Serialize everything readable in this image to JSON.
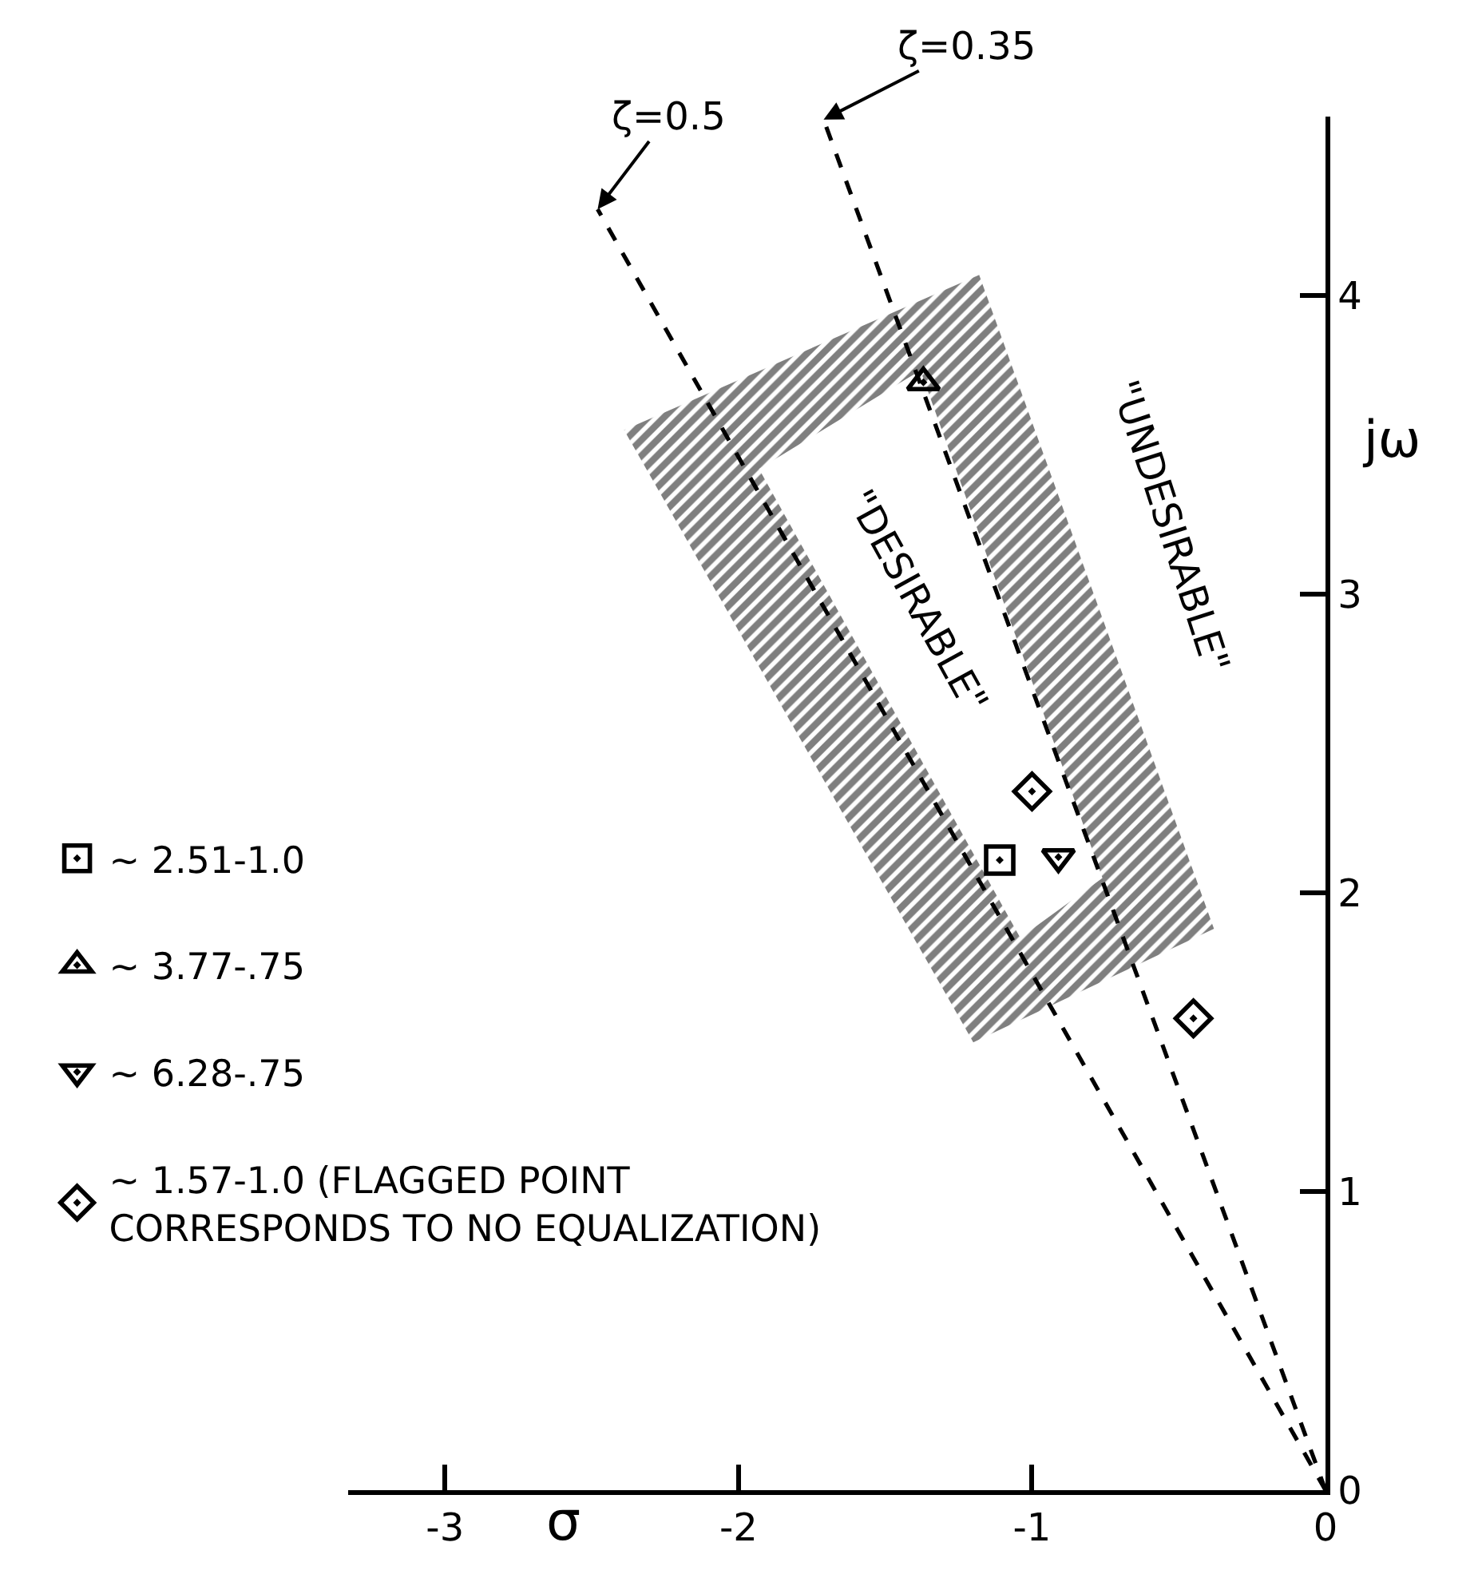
{
  "chart_data": {
    "type": "scatter",
    "xlabel": "σ",
    "ylabel": "jω",
    "xlim": [
      -3.33,
      0
    ],
    "ylim": [
      0,
      4.6
    ],
    "xticks": [
      -3,
      -2,
      -1,
      0
    ],
    "yticks": [
      0,
      1,
      2,
      3,
      4
    ],
    "legend": "left",
    "series": [
      {
        "type": "area",
        "color": "#000000",
        "x": [
          -2.39,
          -1.18,
          -0.38,
          -1.2,
          -2.39,
          -1.93,
          -1.04,
          -0.76,
          -1.38,
          -1.93
        ],
        "values": [
          3.55,
          4.07,
          1.88,
          1.5,
          3.55,
          3.42,
          1.85,
          2.05,
          3.75,
          3.42
        ]
      },
      {
        "type": "line",
        "line_style": "dashed",
        "color": "#000000",
        "x": [
          0,
          -2.48
        ],
        "values": [
          0,
          4.29
        ]
      },
      {
        "type": "line",
        "line_style": "dashed",
        "color": "#000000",
        "x": [
          0,
          -1.71
        ],
        "values": [
          0,
          4.59
        ]
      },
      {
        "name": "~ 2.51-1.0",
        "marker": "square",
        "color": "#000000",
        "x": [
          -1.11
        ],
        "values": [
          2.11
        ]
      },
      {
        "name": "~ 3.77-.75",
        "marker": "triangle",
        "color": "#000000",
        "x": [
          -1.37
        ],
        "values": [
          3.71
        ]
      },
      {
        "name": "~ 6.28-.75",
        "marker": "triangle-down",
        "color": "#000000",
        "x": [
          -0.91
        ],
        "values": [
          2.12
        ]
      },
      {
        "name": "~ 1.57-1.0 (FLAGGED POINT\nCORRESPONDS TO NO EQUALIZATION)",
        "marker": "diamond",
        "color": "#000000",
        "x": [
          -1.0,
          -0.45
        ],
        "values": [
          2.34,
          1.58
        ]
      }
    ],
    "annotations": [
      {
        "text": "ζ=0.5",
        "x": -2.48,
        "y": 4.29
      },
      {
        "text": "ζ=0.35",
        "x": -1.71,
        "y": 4.59
      },
      "\"DESIRABLE\"",
      "\"UNDESIRABLE\""
    ]
  }
}
